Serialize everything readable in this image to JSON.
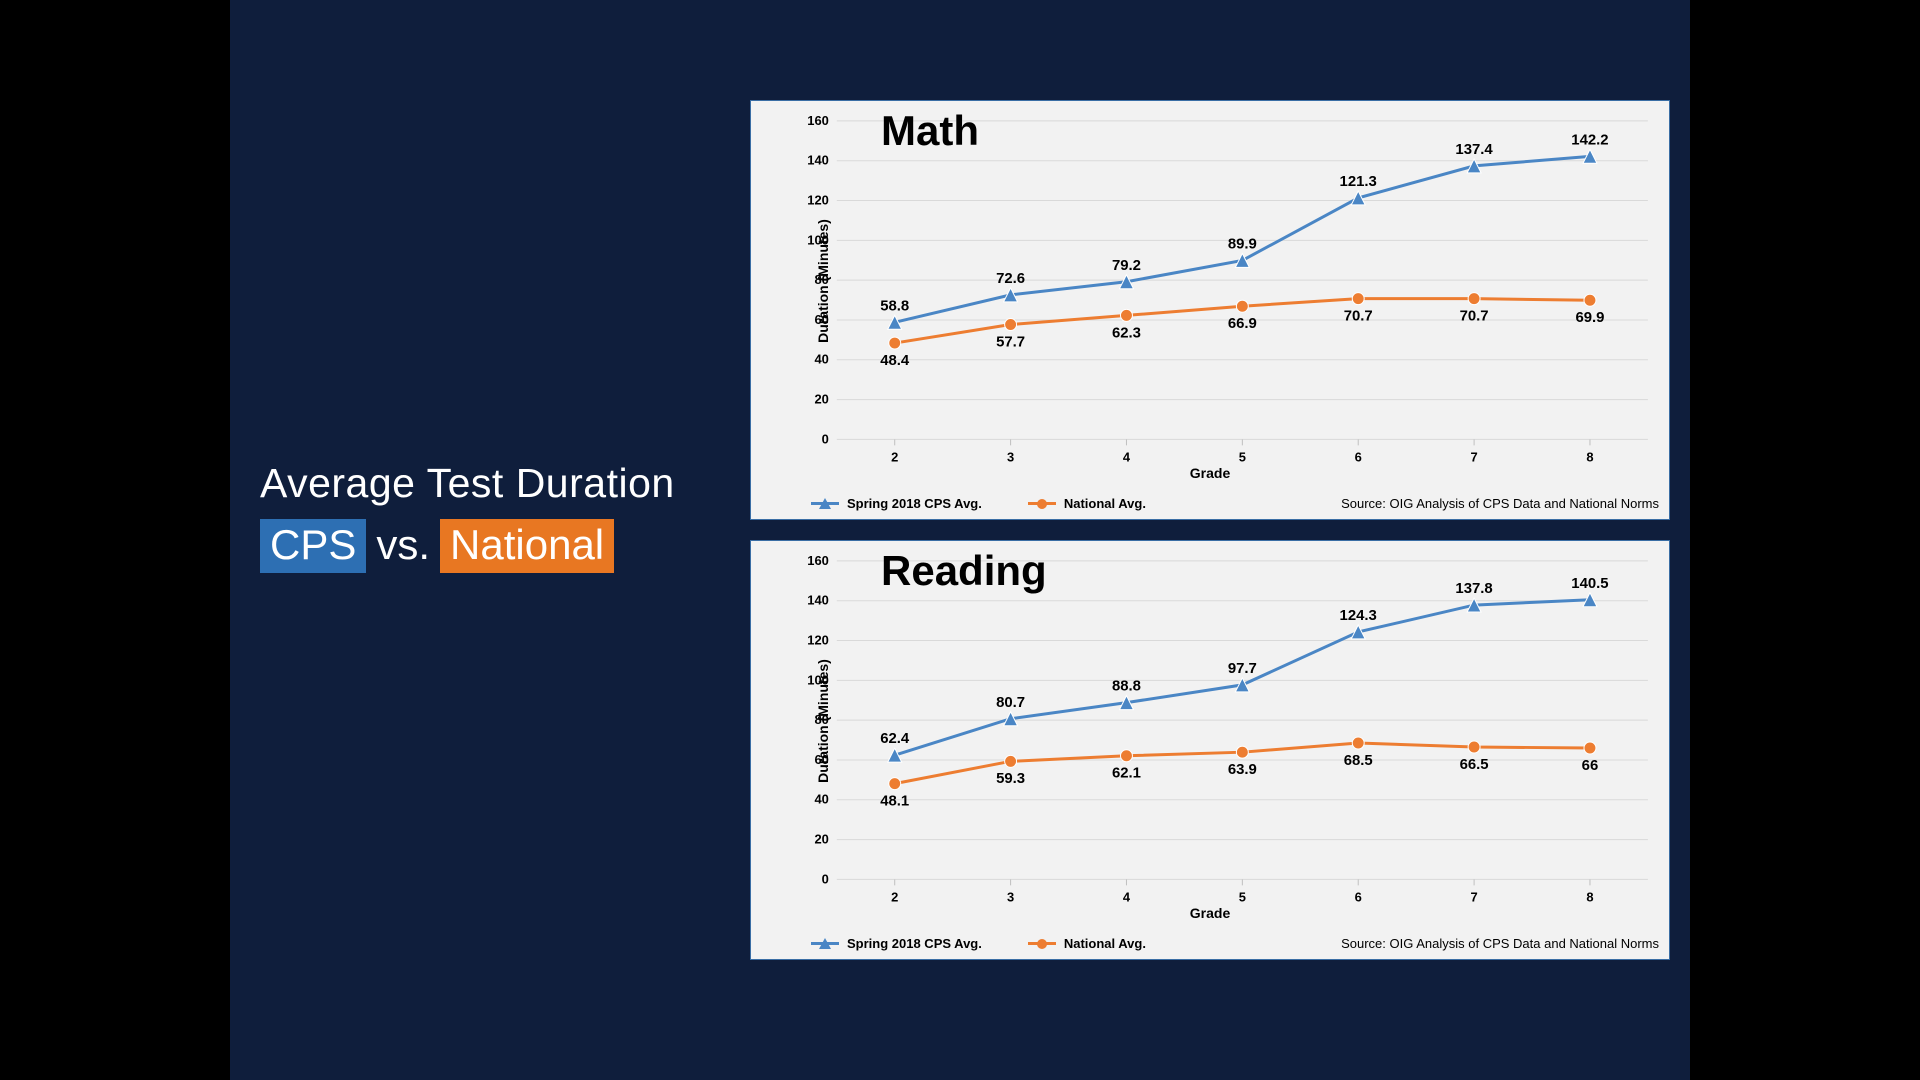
{
  "slide": {
    "background_color": "#0f1e3c",
    "outer_background": "#000000",
    "title_line1": "Average Test Duration",
    "title_cps_label": "CPS",
    "title_vs": "vs.",
    "title_nat_label": "National",
    "title_font_color": "#ffffff",
    "title_fontsize": 42,
    "cps_badge_bg": "#2d6fb3",
    "nat_badge_bg": "#e87722"
  },
  "charts": {
    "panel_bg": "#f2f2f2",
    "panel_border": "#3a6ea5",
    "grid_color": "#d9d9d9",
    "axis_color": "#bfbfbf",
    "text_color": "#000000",
    "ylabel": "Duration (Minutes)",
    "xlabel": "Grade",
    "categories": [
      "2",
      "3",
      "4",
      "5",
      "6",
      "7",
      "8"
    ],
    "ylim": [
      0,
      160
    ],
    "ytick_step": 20,
    "label_fontsize": 14,
    "tick_fontsize": 13,
    "datalabel_fontsize": 15,
    "line_width": 3,
    "marker_size": 6,
    "series_cps": {
      "label": "Spring 2018 CPS Avg.",
      "color": "#4a86c5",
      "marker": "triangle"
    },
    "series_nat": {
      "label": "National Avg.",
      "color": "#ed7d31",
      "marker": "circle"
    },
    "source_text": "Source: OIG Analysis of CPS Data and National Norms",
    "math": {
      "title": "Math",
      "cps_values": [
        58.8,
        72.6,
        79.2,
        89.9,
        121.3,
        137.4,
        142.2
      ],
      "nat_values": [
        48.4,
        57.7,
        62.3,
        66.9,
        70.7,
        70.7,
        69.9
      ]
    },
    "reading": {
      "title": "Reading",
      "cps_values": [
        62.4,
        80.7,
        88.8,
        97.7,
        124.3,
        137.8,
        140.5
      ],
      "nat_values": [
        48.1,
        59.3,
        62.1,
        63.9,
        68.5,
        66.5,
        66.0
      ],
      "nat_labels": [
        "48.1",
        "59.3",
        "62.1",
        "63.9",
        "68.5",
        "66.5",
        "66"
      ]
    }
  }
}
